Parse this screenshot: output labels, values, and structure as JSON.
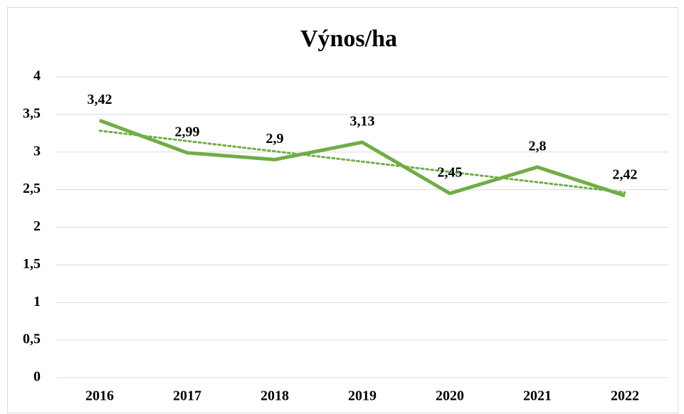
{
  "chart_data": {
    "type": "line",
    "title": "Výnos/ha",
    "categories": [
      "2016",
      "2017",
      "2018",
      "2019",
      "2020",
      "2021",
      "2022"
    ],
    "series": [
      {
        "color": "#70ad47",
        "values": [
          3.42,
          2.99,
          2.9,
          3.13,
          2.45,
          2.8,
          2.42
        ],
        "value_labels": [
          "3,42",
          "2,99",
          "2,9",
          "3,13",
          "2,45",
          "2,8",
          "2,42"
        ]
      }
    ],
    "trendline": "linear",
    "ylim": [
      0,
      4
    ],
    "yticks": [
      0,
      {
        "value": 0.5,
        "label": "0,5"
      },
      1,
      {
        "value": 1.5,
        "label": "1,5"
      },
      2,
      {
        "value": 2.5,
        "label": "2,5"
      },
      3,
      {
        "value": 3.5,
        "label": "3,5"
      },
      4
    ],
    "grid": true
  }
}
